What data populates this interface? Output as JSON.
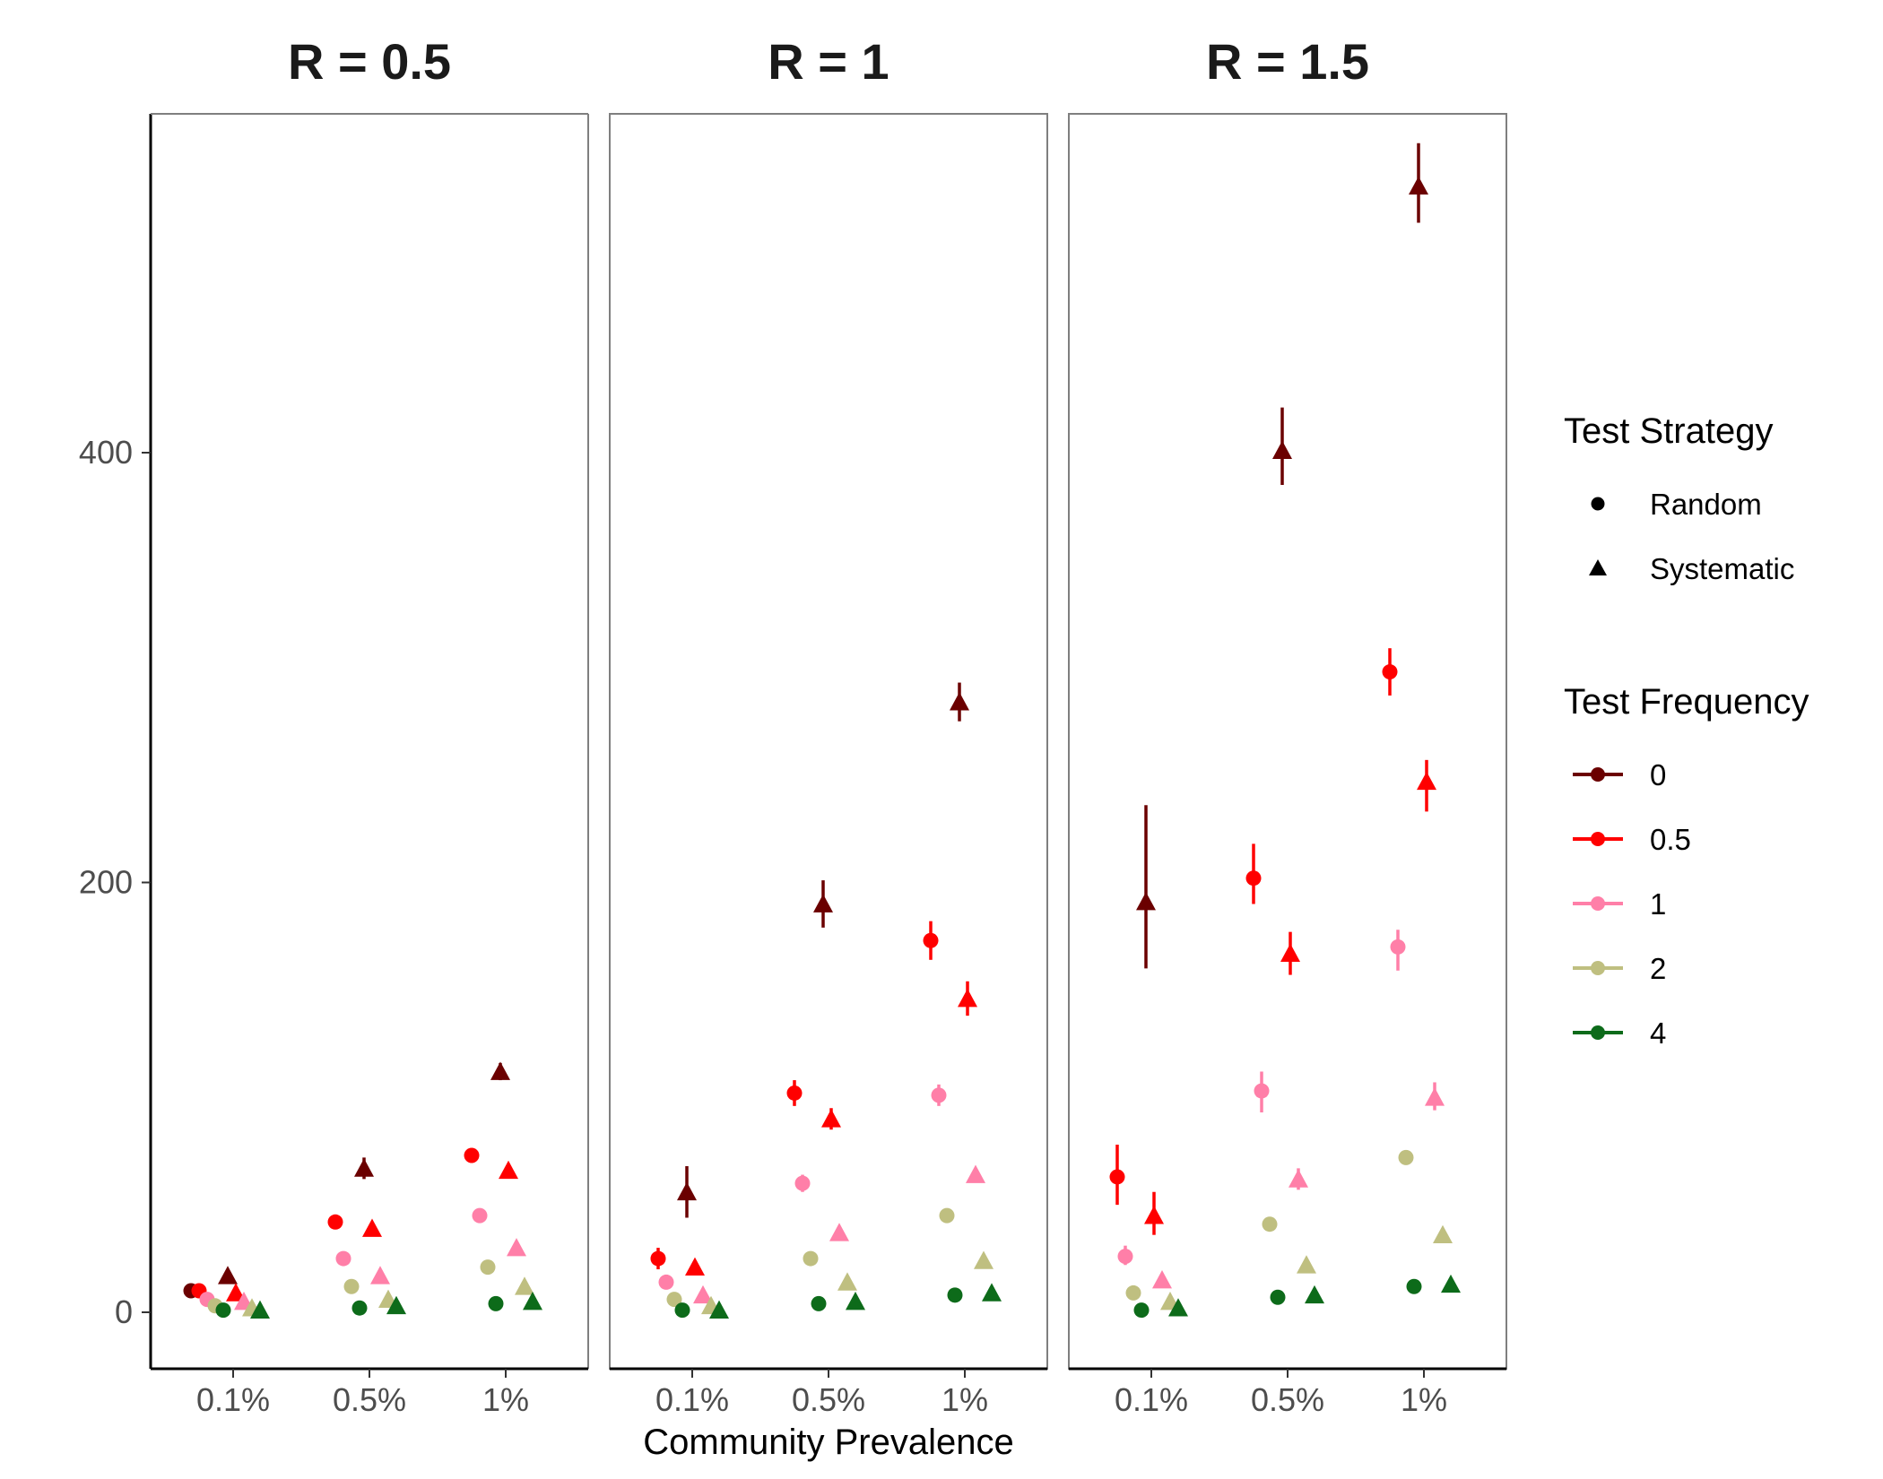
{
  "chart_data": {
    "type": "scatter",
    "xlabel": "Community Prevalence",
    "ylabel": "",
    "categories": [
      "0.1%",
      "0.5%",
      "1%"
    ],
    "ylim": [
      -25,
      560
    ],
    "yticks": [
      0,
      200,
      400
    ],
    "grid": false,
    "legend_position": "right",
    "legend": {
      "strategy_title": "Test Strategy",
      "strategies": [
        {
          "key": "random",
          "label": "Random",
          "shape": "circle"
        },
        {
          "key": "systematic",
          "label": "Systematic",
          "shape": "triangle"
        }
      ],
      "frequency_title": "Test Frequency",
      "frequencies": [
        {
          "key": "0",
          "label": "0",
          "color": "#6b0000"
        },
        {
          "key": "0.5",
          "label": "0.5",
          "color": "#ff0000"
        },
        {
          "key": "1",
          "label": "1",
          "color": "#ff7fa8"
        },
        {
          "key": "2",
          "label": "2",
          "color": "#bfbf80"
        },
        {
          "key": "4",
          "label": "4",
          "color": "#0d6b1a"
        }
      ]
    },
    "panels": [
      {
        "title": "R = 0.5",
        "points": [
          {
            "prevalence": "0.1%",
            "strategy": "random",
            "frequency": "0",
            "y": 10,
            "lo": 10,
            "hi": 10
          },
          {
            "prevalence": "0.1%",
            "strategy": "random",
            "frequency": "0.5",
            "y": 10,
            "lo": 8,
            "hi": 12
          },
          {
            "prevalence": "0.1%",
            "strategy": "random",
            "frequency": "1",
            "y": 6,
            "lo": 5,
            "hi": 7
          },
          {
            "prevalence": "0.1%",
            "strategy": "random",
            "frequency": "2",
            "y": 3,
            "lo": 2,
            "hi": 4
          },
          {
            "prevalence": "0.1%",
            "strategy": "random",
            "frequency": "4",
            "y": 1,
            "lo": 1,
            "hi": 1
          },
          {
            "prevalence": "0.1%",
            "strategy": "systematic",
            "frequency": "0",
            "y": 17,
            "lo": 15,
            "hi": 19
          },
          {
            "prevalence": "0.1%",
            "strategy": "systematic",
            "frequency": "0.5",
            "y": 9,
            "lo": 8,
            "hi": 10
          },
          {
            "prevalence": "0.1%",
            "strategy": "systematic",
            "frequency": "1",
            "y": 5,
            "lo": 4,
            "hi": 6
          },
          {
            "prevalence": "0.1%",
            "strategy": "systematic",
            "frequency": "2",
            "y": 2,
            "lo": 2,
            "hi": 2
          },
          {
            "prevalence": "0.1%",
            "strategy": "systematic",
            "frequency": "4",
            "y": 1,
            "lo": 1,
            "hi": 1
          },
          {
            "prevalence": "0.5%",
            "strategy": "random",
            "frequency": "0.5",
            "y": 42,
            "lo": 40,
            "hi": 44
          },
          {
            "prevalence": "0.5%",
            "strategy": "random",
            "frequency": "1",
            "y": 25,
            "lo": 23,
            "hi": 27
          },
          {
            "prevalence": "0.5%",
            "strategy": "random",
            "frequency": "2",
            "y": 12,
            "lo": 11,
            "hi": 13
          },
          {
            "prevalence": "0.5%",
            "strategy": "random",
            "frequency": "4",
            "y": 2,
            "lo": 2,
            "hi": 2
          },
          {
            "prevalence": "0.5%",
            "strategy": "systematic",
            "frequency": "0",
            "y": 67,
            "lo": 62,
            "hi": 72
          },
          {
            "prevalence": "0.5%",
            "strategy": "systematic",
            "frequency": "0.5",
            "y": 39,
            "lo": 37,
            "hi": 41
          },
          {
            "prevalence": "0.5%",
            "strategy": "systematic",
            "frequency": "1",
            "y": 17,
            "lo": 16,
            "hi": 18
          },
          {
            "prevalence": "0.5%",
            "strategy": "systematic",
            "frequency": "2",
            "y": 6,
            "lo": 5,
            "hi": 7
          },
          {
            "prevalence": "0.5%",
            "strategy": "systematic",
            "frequency": "4",
            "y": 3,
            "lo": 3,
            "hi": 3
          },
          {
            "prevalence": "1%",
            "strategy": "random",
            "frequency": "0.5",
            "y": 73,
            "lo": 70,
            "hi": 76
          },
          {
            "prevalence": "1%",
            "strategy": "random",
            "frequency": "1",
            "y": 45,
            "lo": 43,
            "hi": 47
          },
          {
            "prevalence": "1%",
            "strategy": "random",
            "frequency": "2",
            "y": 21,
            "lo": 20,
            "hi": 22
          },
          {
            "prevalence": "1%",
            "strategy": "random",
            "frequency": "4",
            "y": 4,
            "lo": 4,
            "hi": 4
          },
          {
            "prevalence": "1%",
            "strategy": "systematic",
            "frequency": "0",
            "y": 112,
            "lo": 108,
            "hi": 116
          },
          {
            "prevalence": "1%",
            "strategy": "systematic",
            "frequency": "0.5",
            "y": 66,
            "lo": 63,
            "hi": 69
          },
          {
            "prevalence": "1%",
            "strategy": "systematic",
            "frequency": "1",
            "y": 30,
            "lo": 29,
            "hi": 31
          },
          {
            "prevalence": "1%",
            "strategy": "systematic",
            "frequency": "2",
            "y": 12,
            "lo": 11,
            "hi": 13
          },
          {
            "prevalence": "1%",
            "strategy": "systematic",
            "frequency": "4",
            "y": 5,
            "lo": 5,
            "hi": 5
          }
        ]
      },
      {
        "title": "R = 1",
        "points": [
          {
            "prevalence": "0.1%",
            "strategy": "random",
            "frequency": "0.5",
            "y": 25,
            "lo": 20,
            "hi": 30
          },
          {
            "prevalence": "0.1%",
            "strategy": "random",
            "frequency": "1",
            "y": 14,
            "lo": 12,
            "hi": 16
          },
          {
            "prevalence": "0.1%",
            "strategy": "random",
            "frequency": "2",
            "y": 6,
            "lo": 5,
            "hi": 7
          },
          {
            "prevalence": "0.1%",
            "strategy": "random",
            "frequency": "4",
            "y": 1,
            "lo": 1,
            "hi": 1
          },
          {
            "prevalence": "0.1%",
            "strategy": "systematic",
            "frequency": "0",
            "y": 56,
            "lo": 44,
            "hi": 68
          },
          {
            "prevalence": "0.1%",
            "strategy": "systematic",
            "frequency": "0.5",
            "y": 21,
            "lo": 18,
            "hi": 24
          },
          {
            "prevalence": "0.1%",
            "strategy": "systematic",
            "frequency": "1",
            "y": 8,
            "lo": 7,
            "hi": 9
          },
          {
            "prevalence": "0.1%",
            "strategy": "systematic",
            "frequency": "2",
            "y": 3,
            "lo": 3,
            "hi": 3
          },
          {
            "prevalence": "0.1%",
            "strategy": "systematic",
            "frequency": "4",
            "y": 1,
            "lo": 1,
            "hi": 1
          },
          {
            "prevalence": "0.5%",
            "strategy": "random",
            "frequency": "0.5",
            "y": 102,
            "lo": 96,
            "hi": 108
          },
          {
            "prevalence": "0.5%",
            "strategy": "random",
            "frequency": "1",
            "y": 60,
            "lo": 56,
            "hi": 64
          },
          {
            "prevalence": "0.5%",
            "strategy": "random",
            "frequency": "2",
            "y": 25,
            "lo": 23,
            "hi": 27
          },
          {
            "prevalence": "0.5%",
            "strategy": "random",
            "frequency": "4",
            "y": 4,
            "lo": 4,
            "hi": 4
          },
          {
            "prevalence": "0.5%",
            "strategy": "systematic",
            "frequency": "0",
            "y": 190,
            "lo": 179,
            "hi": 201
          },
          {
            "prevalence": "0.5%",
            "strategy": "systematic",
            "frequency": "0.5",
            "y": 90,
            "lo": 85,
            "hi": 95
          },
          {
            "prevalence": "0.5%",
            "strategy": "systematic",
            "frequency": "1",
            "y": 37,
            "lo": 35,
            "hi": 39
          },
          {
            "prevalence": "0.5%",
            "strategy": "systematic",
            "frequency": "2",
            "y": 14,
            "lo": 13,
            "hi": 15
          },
          {
            "prevalence": "0.5%",
            "strategy": "systematic",
            "frequency": "4",
            "y": 5,
            "lo": 5,
            "hi": 5
          },
          {
            "prevalence": "1%",
            "strategy": "random",
            "frequency": "0.5",
            "y": 173,
            "lo": 164,
            "hi": 182
          },
          {
            "prevalence": "1%",
            "strategy": "random",
            "frequency": "1",
            "y": 101,
            "lo": 96,
            "hi": 106
          },
          {
            "prevalence": "1%",
            "strategy": "random",
            "frequency": "2",
            "y": 45,
            "lo": 43,
            "hi": 47
          },
          {
            "prevalence": "1%",
            "strategy": "random",
            "frequency": "4",
            "y": 8,
            "lo": 8,
            "hi": 8
          },
          {
            "prevalence": "1%",
            "strategy": "systematic",
            "frequency": "0",
            "y": 284,
            "lo": 275,
            "hi": 293
          },
          {
            "prevalence": "1%",
            "strategy": "systematic",
            "frequency": "0.5",
            "y": 146,
            "lo": 138,
            "hi": 154
          },
          {
            "prevalence": "1%",
            "strategy": "systematic",
            "frequency": "1",
            "y": 64,
            "lo": 61,
            "hi": 67
          },
          {
            "prevalence": "1%",
            "strategy": "systematic",
            "frequency": "2",
            "y": 24,
            "lo": 23,
            "hi": 25
          },
          {
            "prevalence": "1%",
            "strategy": "systematic",
            "frequency": "4",
            "y": 9,
            "lo": 9,
            "hi": 9
          }
        ]
      },
      {
        "title": "R = 1.5",
        "points": [
          {
            "prevalence": "0.1%",
            "strategy": "random",
            "frequency": "0.5",
            "y": 63,
            "lo": 50,
            "hi": 78
          },
          {
            "prevalence": "0.1%",
            "strategy": "random",
            "frequency": "1",
            "y": 26,
            "lo": 22,
            "hi": 31
          },
          {
            "prevalence": "0.1%",
            "strategy": "random",
            "frequency": "2",
            "y": 9,
            "lo": 8,
            "hi": 10
          },
          {
            "prevalence": "0.1%",
            "strategy": "random",
            "frequency": "4",
            "y": 1,
            "lo": 1,
            "hi": 1
          },
          {
            "prevalence": "0.1%",
            "strategy": "systematic",
            "frequency": "0",
            "y": 191,
            "lo": 160,
            "hi": 236
          },
          {
            "prevalence": "0.1%",
            "strategy": "systematic",
            "frequency": "0.5",
            "y": 45,
            "lo": 36,
            "hi": 56
          },
          {
            "prevalence": "0.1%",
            "strategy": "systematic",
            "frequency": "1",
            "y": 15,
            "lo": 13,
            "hi": 17
          },
          {
            "prevalence": "0.1%",
            "strategy": "systematic",
            "frequency": "2",
            "y": 5,
            "lo": 4,
            "hi": 6
          },
          {
            "prevalence": "0.1%",
            "strategy": "systematic",
            "frequency": "4",
            "y": 2,
            "lo": 2,
            "hi": 2
          },
          {
            "prevalence": "0.5%",
            "strategy": "random",
            "frequency": "0.5",
            "y": 202,
            "lo": 190,
            "hi": 218
          },
          {
            "prevalence": "0.5%",
            "strategy": "random",
            "frequency": "1",
            "y": 103,
            "lo": 93,
            "hi": 112
          },
          {
            "prevalence": "0.5%",
            "strategy": "random",
            "frequency": "2",
            "y": 41,
            "lo": 38,
            "hi": 44
          },
          {
            "prevalence": "0.5%",
            "strategy": "random",
            "frequency": "4",
            "y": 7,
            "lo": 7,
            "hi": 7
          },
          {
            "prevalence": "0.5%",
            "strategy": "systematic",
            "frequency": "0",
            "y": 401,
            "lo": 385,
            "hi": 421
          },
          {
            "prevalence": "0.5%",
            "strategy": "systematic",
            "frequency": "0.5",
            "y": 167,
            "lo": 157,
            "hi": 177
          },
          {
            "prevalence": "0.5%",
            "strategy": "systematic",
            "frequency": "1",
            "y": 62,
            "lo": 57,
            "hi": 67
          },
          {
            "prevalence": "0.5%",
            "strategy": "systematic",
            "frequency": "2",
            "y": 22,
            "lo": 21,
            "hi": 23
          },
          {
            "prevalence": "0.5%",
            "strategy": "systematic",
            "frequency": "4",
            "y": 8,
            "lo": 8,
            "hi": 8
          },
          {
            "prevalence": "1%",
            "strategy": "random",
            "frequency": "0.5",
            "y": 298,
            "lo": 287,
            "hi": 309
          },
          {
            "prevalence": "1%",
            "strategy": "random",
            "frequency": "1",
            "y": 170,
            "lo": 159,
            "hi": 178
          },
          {
            "prevalence": "1%",
            "strategy": "random",
            "frequency": "2",
            "y": 72,
            "lo": 69,
            "hi": 75
          },
          {
            "prevalence": "1%",
            "strategy": "random",
            "frequency": "4",
            "y": 12,
            "lo": 12,
            "hi": 12
          },
          {
            "prevalence": "1%",
            "strategy": "systematic",
            "frequency": "0",
            "y": 524,
            "lo": 507,
            "hi": 544
          },
          {
            "prevalence": "1%",
            "strategy": "systematic",
            "frequency": "0.5",
            "y": 247,
            "lo": 233,
            "hi": 257
          },
          {
            "prevalence": "1%",
            "strategy": "systematic",
            "frequency": "1",
            "y": 100,
            "lo": 94,
            "hi": 107
          },
          {
            "prevalence": "1%",
            "strategy": "systematic",
            "frequency": "2",
            "y": 36,
            "lo": 34,
            "hi": 38
          },
          {
            "prevalence": "1%",
            "strategy": "systematic",
            "frequency": "4",
            "y": 13,
            "lo": 13,
            "hi": 13
          }
        ]
      }
    ]
  }
}
